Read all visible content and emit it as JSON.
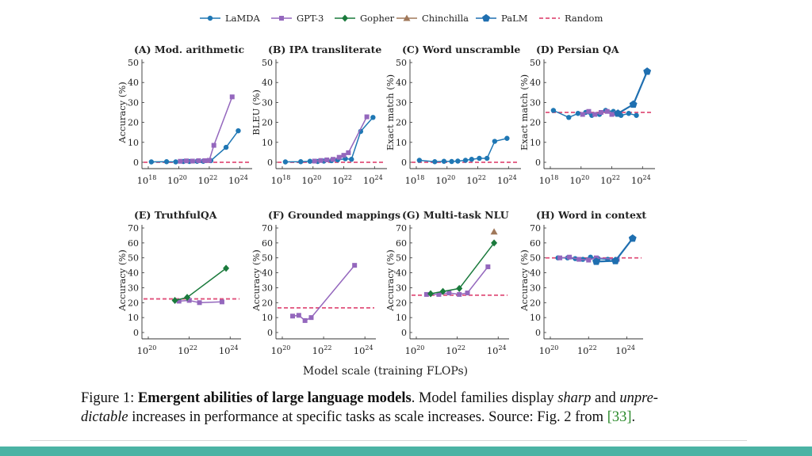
{
  "colors": {
    "LaMDA": "#1f77b4",
    "GPT-3": "#9467bd",
    "Gopher": "#1a7a3c",
    "Chinchilla": "#a0785a",
    "PaLM": "#1f6fb0",
    "Random": "#e0507a",
    "accent_bar": "#4bb3a4"
  },
  "legend": [
    "LaMDA",
    "GPT-3",
    "Gopher",
    "Chinchilla",
    "PaLM",
    "Random"
  ],
  "xlabel": "Model scale (training FLOPs)",
  "caption": {
    "prefix": "Figure 1: ",
    "title": "Emergent abilities of large language models",
    "part1": ". Model families display ",
    "sharp": "sharp",
    "and": " and ",
    "unpre": "unpre-",
    "dictable": "dictable",
    "part2": " increases in performance at specific tasks as scale increases. Source: Fig. 2 from ",
    "ref": "[33]",
    "end": "."
  },
  "chart_data": [
    {
      "type": "line",
      "title": "(A) Mod. arithmetic",
      "ylabel": "Accuracy (%)",
      "xlim": [
        18,
        24.5
      ],
      "ylim": [
        0,
        50
      ],
      "xticks": [
        18,
        20,
        22,
        24
      ],
      "yticks": [
        0,
        10,
        20,
        30,
        40,
        50
      ],
      "random": 0,
      "series": [
        {
          "name": "LaMDA",
          "x": [
            18.2,
            19.2,
            19.8,
            20.3,
            20.7,
            21.2,
            21.6,
            22.1,
            23.1,
            23.9
          ],
          "y": [
            0.2,
            0.3,
            0.2,
            0.4,
            0.4,
            0.5,
            0.5,
            0.8,
            7.5,
            15.8
          ]
        },
        {
          "name": "GPT-3",
          "x": [
            20.1,
            20.5,
            20.9,
            21.3,
            21.7,
            22.0,
            22.3,
            23.5
          ],
          "y": [
            0.5,
            0.7,
            0.6,
            0.8,
            0.8,
            1.0,
            8.5,
            32.8
          ]
        }
      ]
    },
    {
      "type": "line",
      "title": "(B) IPA transliterate",
      "ylabel": "BLEU (%)",
      "xlim": [
        18,
        24.5
      ],
      "ylim": [
        0,
        50
      ],
      "xticks": [
        18,
        20,
        22,
        24
      ],
      "yticks": [
        0,
        10,
        20,
        30,
        40,
        50
      ],
      "random": 0,
      "series": [
        {
          "name": "LaMDA",
          "x": [
            18.2,
            19.2,
            19.8,
            20.3,
            20.7,
            21.2,
            21.6,
            22.1,
            22.5,
            23.1,
            23.9
          ],
          "y": [
            0.2,
            0.3,
            0.5,
            0.4,
            0.6,
            0.8,
            1.2,
            1.8,
            1.5,
            15.5,
            22.5
          ]
        },
        {
          "name": "GPT-3",
          "x": [
            20.1,
            20.5,
            20.9,
            21.3,
            21.7,
            22.0,
            22.3,
            23.5
          ],
          "y": [
            0.6,
            0.9,
            1.2,
            1.5,
            2.5,
            3.5,
            4.8,
            22.8
          ]
        }
      ]
    },
    {
      "type": "line",
      "title": "(C) Word unscramble",
      "ylabel": "Exact match (%)",
      "xlim": [
        18,
        24.5
      ],
      "ylim": [
        0,
        50
      ],
      "xticks": [
        18,
        20,
        22,
        24
      ],
      "yticks": [
        0,
        10,
        20,
        30,
        40,
        50
      ],
      "random": 0,
      "series": [
        {
          "name": "LaMDA",
          "x": [
            18.2,
            19.2,
            19.8,
            20.3,
            20.7,
            21.2,
            21.6,
            22.1,
            22.6,
            23.1,
            23.9
          ],
          "y": [
            1.0,
            0.3,
            0.5,
            0.4,
            0.6,
            1.0,
            1.5,
            2.0,
            2.0,
            10.5,
            12.0
          ]
        }
      ]
    },
    {
      "type": "line",
      "title": "(D) Persian QA",
      "ylabel": "Exact match (%)",
      "xlim": [
        18,
        24.5
      ],
      "ylim": [
        0,
        50
      ],
      "xticks": [
        18,
        20,
        22,
        24
      ],
      "yticks": [
        0,
        10,
        20,
        30,
        40,
        50
      ],
      "random": 25,
      "series": [
        {
          "name": "LaMDA",
          "x": [
            18.2,
            19.2,
            19.8,
            20.3,
            20.7,
            21.2,
            21.6,
            22.1,
            22.6,
            23.1,
            23.6
          ],
          "y": [
            26.0,
            22.5,
            24.5,
            25.0,
            23.5,
            24.0,
            26.0,
            25.5,
            23.5,
            24.5,
            23.5
          ]
        },
        {
          "name": "GPT-3",
          "x": [
            20.1,
            20.5,
            20.9,
            21.3,
            21.7,
            22.0,
            22.3
          ],
          "y": [
            24.0,
            25.5,
            24.0,
            25.0,
            25.5,
            24.0,
            24.5
          ]
        },
        {
          "name": "PaLM",
          "x": [
            22.4,
            23.4,
            24.3
          ],
          "y": [
            24.5,
            29.0,
            45.5
          ]
        }
      ]
    },
    {
      "type": "line",
      "title": "(E) TruthfulQA",
      "ylabel": "Accuracy (%)",
      "xlim": [
        20,
        24.3
      ],
      "ylim": [
        0,
        70
      ],
      "xticks": [
        20,
        22,
        24
      ],
      "yticks": [
        0,
        10,
        20,
        30,
        40,
        50,
        60,
        70
      ],
      "random": 22.5,
      "series": [
        {
          "name": "GPT-3",
          "x": [
            21.5,
            22.0,
            22.5,
            23.6
          ],
          "y": [
            21.0,
            21.5,
            20.0,
            20.5
          ]
        },
        {
          "name": "Gopher",
          "x": [
            21.3,
            21.9,
            23.8
          ],
          "y": [
            21.5,
            23.5,
            43.0
          ]
        }
      ]
    },
    {
      "type": "line",
      "title": "(F) Grounded mappings",
      "ylabel": "Accuracy (%)",
      "xlim": [
        20,
        24.3
      ],
      "ylim": [
        0,
        70
      ],
      "xticks": [
        20,
        22,
        24
      ],
      "yticks": [
        0,
        10,
        20,
        30,
        40,
        50,
        60,
        70
      ],
      "random": 16.5,
      "series": [
        {
          "name": "GPT-3",
          "x": [
            20.5,
            20.8,
            21.1,
            21.4,
            23.5
          ],
          "y": [
            11.0,
            11.5,
            8.0,
            10.0,
            45.0
          ]
        }
      ]
    },
    {
      "type": "line",
      "title": "(G) Multi-task NLU",
      "ylabel": "Accuracy (%)",
      "xlim": [
        20,
        24.3
      ],
      "ylim": [
        0,
        70
      ],
      "xticks": [
        20,
        22,
        24
      ],
      "yticks": [
        0,
        10,
        20,
        30,
        40,
        50,
        60,
        70
      ],
      "random": 25,
      "series": [
        {
          "name": "GPT-3",
          "x": [
            20.5,
            21.1,
            21.6,
            22.1,
            22.5,
            23.5
          ],
          "y": [
            25.5,
            25.5,
            26.5,
            25.5,
            26.5,
            44.0
          ]
        },
        {
          "name": "Chinchilla",
          "x": [
            23.8
          ],
          "y": [
            67.5
          ]
        },
        {
          "name": "Gopher",
          "x": [
            20.7,
            21.3,
            22.1,
            23.8
          ],
          "y": [
            26.0,
            27.5,
            29.5,
            60.0
          ]
        }
      ]
    },
    {
      "type": "line",
      "title": "(H) Word in context",
      "ylabel": "Accuracy (%)",
      "xlim": [
        20,
        24.6
      ],
      "ylim": [
        0,
        70
      ],
      "xticks": [
        20,
        22,
        24
      ],
      "yticks": [
        0,
        10,
        20,
        30,
        40,
        50,
        60,
        70
      ],
      "random": 50,
      "series": [
        {
          "name": "LaMDA",
          "x": [
            20.4,
            20.9,
            21.3,
            21.7,
            22.1,
            22.5,
            23.0
          ],
          "y": [
            50.0,
            50.0,
            49.5,
            49.0,
            50.5,
            49.5,
            49.0
          ]
        },
        {
          "name": "GPT-3",
          "x": [
            20.5,
            21.0,
            21.5,
            22.0,
            22.4,
            23.5
          ],
          "y": [
            50.0,
            50.5,
            49.0,
            48.5,
            50.0,
            49.0
          ]
        },
        {
          "name": "PaLM",
          "x": [
            22.4,
            23.4,
            24.3
          ],
          "y": [
            47.5,
            48.0,
            63.0
          ]
        }
      ]
    }
  ]
}
